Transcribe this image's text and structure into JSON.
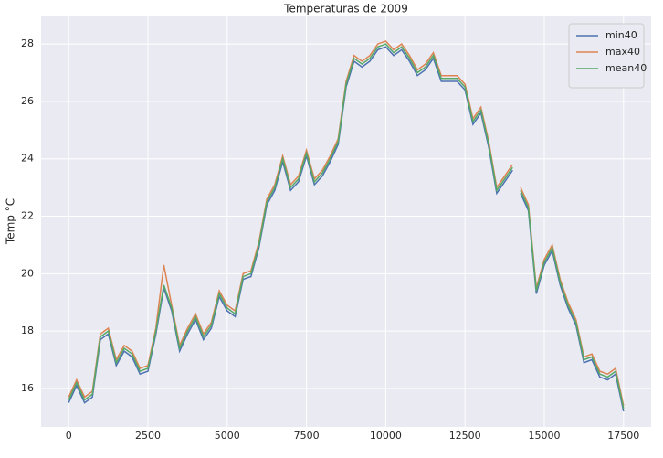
{
  "chart_data": {
    "type": "line",
    "title": "Temperaturas de 2009",
    "y_label": "Temp °C",
    "x": [
      0,
      250,
      500,
      750,
      1000,
      1250,
      1500,
      1750,
      2000,
      2250,
      2500,
      2750,
      3000,
      3250,
      3500,
      3750,
      4000,
      4250,
      4500,
      4750,
      5000,
      5250,
      5500,
      5750,
      6000,
      6250,
      6500,
      6750,
      7000,
      7250,
      7500,
      7750,
      8000,
      8250,
      8500,
      8750,
      9000,
      9250,
      9500,
      9750,
      10000,
      10250,
      10500,
      10750,
      11000,
      11250,
      11500,
      11750,
      12000,
      12250,
      12500,
      12750,
      13000,
      13250,
      13500,
      13750,
      14000,
      14125,
      14250,
      14500,
      14750,
      15000,
      15250,
      15500,
      15750,
      16000,
      16250,
      16500,
      16750,
      17000,
      17250,
      17500
    ],
    "series": [
      {
        "name": "min40",
        "color": "#4c72b0",
        "values": [
          15.5,
          16.1,
          15.5,
          15.7,
          17.7,
          17.9,
          16.8,
          17.3,
          17.1,
          16.5,
          16.6,
          17.9,
          19.5,
          18.7,
          17.3,
          17.9,
          18.4,
          17.7,
          18.1,
          19.2,
          18.7,
          18.5,
          19.8,
          19.9,
          20.9,
          22.4,
          22.9,
          23.9,
          22.9,
          23.2,
          24.1,
          23.1,
          23.4,
          23.9,
          24.5,
          26.5,
          27.4,
          27.2,
          27.4,
          27.8,
          27.9,
          27.6,
          27.8,
          27.4,
          26.9,
          27.1,
          27.5,
          26.7,
          26.7,
          26.7,
          26.4,
          25.2,
          25.6,
          24.4,
          22.8,
          23.2,
          23.6,
          null,
          22.8,
          22.2,
          19.3,
          20.3,
          20.8,
          19.6,
          18.8,
          18.2,
          16.9,
          17.0,
          16.4,
          16.3,
          16.5,
          15.2
        ]
      },
      {
        "name": "max40",
        "color": "#dd8452",
        "values": [
          15.7,
          16.3,
          15.7,
          15.9,
          17.9,
          18.1,
          17.0,
          17.5,
          17.3,
          16.7,
          16.8,
          18.1,
          20.3,
          18.9,
          17.5,
          18.1,
          18.6,
          17.9,
          18.3,
          19.4,
          18.9,
          18.7,
          20.0,
          20.1,
          21.1,
          22.6,
          23.1,
          24.1,
          23.1,
          23.4,
          24.3,
          23.3,
          23.6,
          24.1,
          24.7,
          26.7,
          27.6,
          27.4,
          27.6,
          28.0,
          28.1,
          27.8,
          28.0,
          27.6,
          27.1,
          27.3,
          27.7,
          26.9,
          26.9,
          26.9,
          26.6,
          25.4,
          25.8,
          24.6,
          23.0,
          23.4,
          23.8,
          null,
          23.0,
          22.4,
          19.5,
          20.5,
          21.0,
          19.8,
          19.0,
          18.4,
          17.1,
          17.2,
          16.6,
          16.5,
          16.7,
          15.4
        ]
      },
      {
        "name": "mean40",
        "color": "#55a868",
        "values": [
          15.6,
          16.2,
          15.6,
          15.8,
          17.8,
          18.0,
          16.9,
          17.4,
          17.2,
          16.6,
          16.7,
          18.0,
          19.6,
          18.8,
          17.4,
          18.0,
          18.5,
          17.8,
          18.2,
          19.3,
          18.8,
          18.6,
          19.9,
          20.0,
          21.0,
          22.5,
          23.0,
          24.0,
          23.0,
          23.3,
          24.2,
          23.2,
          23.5,
          24.0,
          24.6,
          26.6,
          27.5,
          27.3,
          27.5,
          27.9,
          28.0,
          27.7,
          27.9,
          27.5,
          27.0,
          27.2,
          27.6,
          26.8,
          26.8,
          26.8,
          26.5,
          25.3,
          25.7,
          24.5,
          22.9,
          23.3,
          23.7,
          null,
          22.9,
          22.3,
          19.4,
          20.4,
          20.9,
          19.7,
          18.9,
          18.3,
          17.0,
          17.1,
          16.5,
          16.4,
          16.6,
          15.3
        ]
      }
    ],
    "xlim": [
      -870,
      18370
    ],
    "ylim": [
      14.66,
      28.96
    ],
    "xticks": [
      0,
      2500,
      5000,
      7500,
      10000,
      12500,
      15000,
      17500
    ],
    "yticks": [
      16,
      18,
      20,
      22,
      24,
      26,
      28
    ],
    "grid": true,
    "legend": "upper right"
  }
}
